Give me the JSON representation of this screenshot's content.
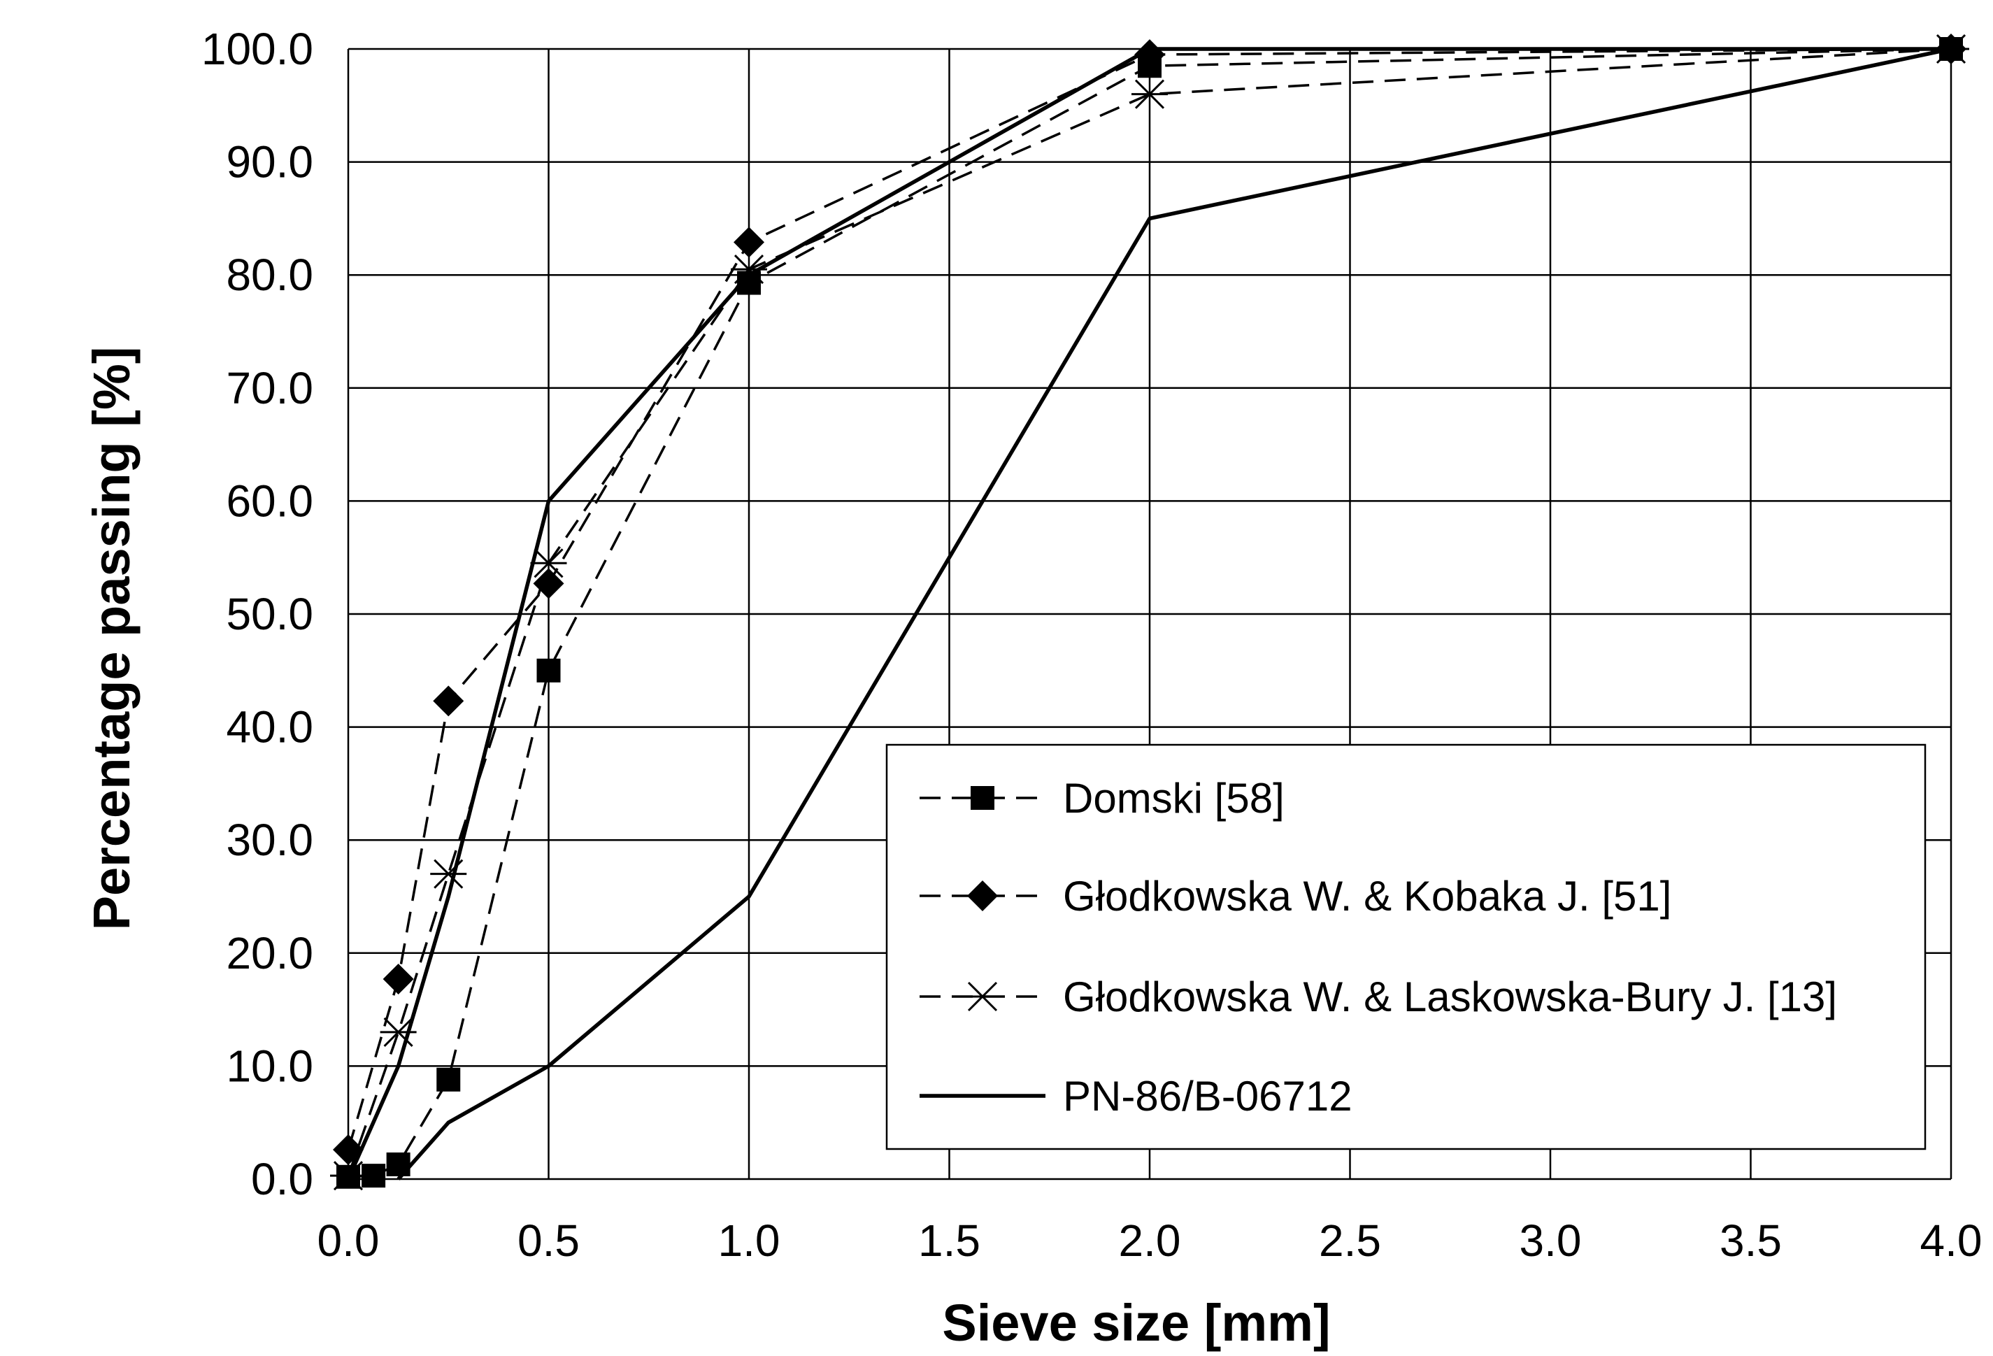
{
  "chart_data": {
    "type": "line",
    "title": "",
    "xlabel": "Sieve size [mm]",
    "ylabel": "Percentage passing   [%]",
    "xlim": [
      0,
      4
    ],
    "ylim": [
      0,
      100
    ],
    "x_ticks": [
      "0.0",
      "0.5",
      "1.0",
      "1.5",
      "2.0",
      "2.5",
      "3.0",
      "3.5",
      "4.0"
    ],
    "y_ticks": [
      "0.0",
      "10.0",
      "20.0",
      "30.0",
      "40.0",
      "50.0",
      "60.0",
      "70.0",
      "80.0",
      "90.0",
      "100.0"
    ],
    "grid": true,
    "legend_position": "bottom-right",
    "series": [
      {
        "name": "Domski [58]",
        "style": "dashed",
        "marker": "square",
        "x": [
          0.0,
          0.063,
          0.125,
          0.25,
          0.5,
          1.0,
          2.0,
          4.0
        ],
        "y": [
          0.2,
          0.3,
          1.3,
          8.8,
          45.0,
          79.3,
          98.5,
          100.0
        ]
      },
      {
        "name": "Głodkowska W. & Kobaka J. [51]",
        "style": "dashed",
        "marker": "diamond",
        "x": [
          0.0,
          0.125,
          0.25,
          0.5,
          1.0,
          2.0,
          4.0
        ],
        "y": [
          2.6,
          17.7,
          42.3,
          52.7,
          82.9,
          99.5,
          100.0
        ]
      },
      {
        "name": "Głodkowska W. & Laskowska-Bury J. [13]",
        "style": "dashed",
        "marker": "x",
        "x": [
          0.0,
          0.125,
          0.25,
          0.5,
          1.0,
          2.0,
          4.0
        ],
        "y": [
          0.3,
          13.0,
          27.0,
          54.5,
          80.5,
          96.0,
          100.0
        ]
      },
      {
        "name": "PN-86/B-06712",
        "style": "solid",
        "marker": "none",
        "x": [
          0.0,
          0.125,
          0.25,
          0.5,
          1.0,
          2.0,
          4.0
        ],
        "y": [
          0.0,
          10.0,
          25.0,
          60.0,
          80.0,
          100.0,
          100.0
        ]
      },
      {
        "name": "PN-86/B-06712",
        "style": "solid",
        "marker": "none",
        "show_in_legend": false,
        "x": [
          0.125,
          0.25,
          0.5,
          1.0,
          2.0,
          4.0
        ],
        "y": [
          0.0,
          5.0,
          10.0,
          25.0,
          85.0,
          100.0
        ]
      }
    ]
  }
}
